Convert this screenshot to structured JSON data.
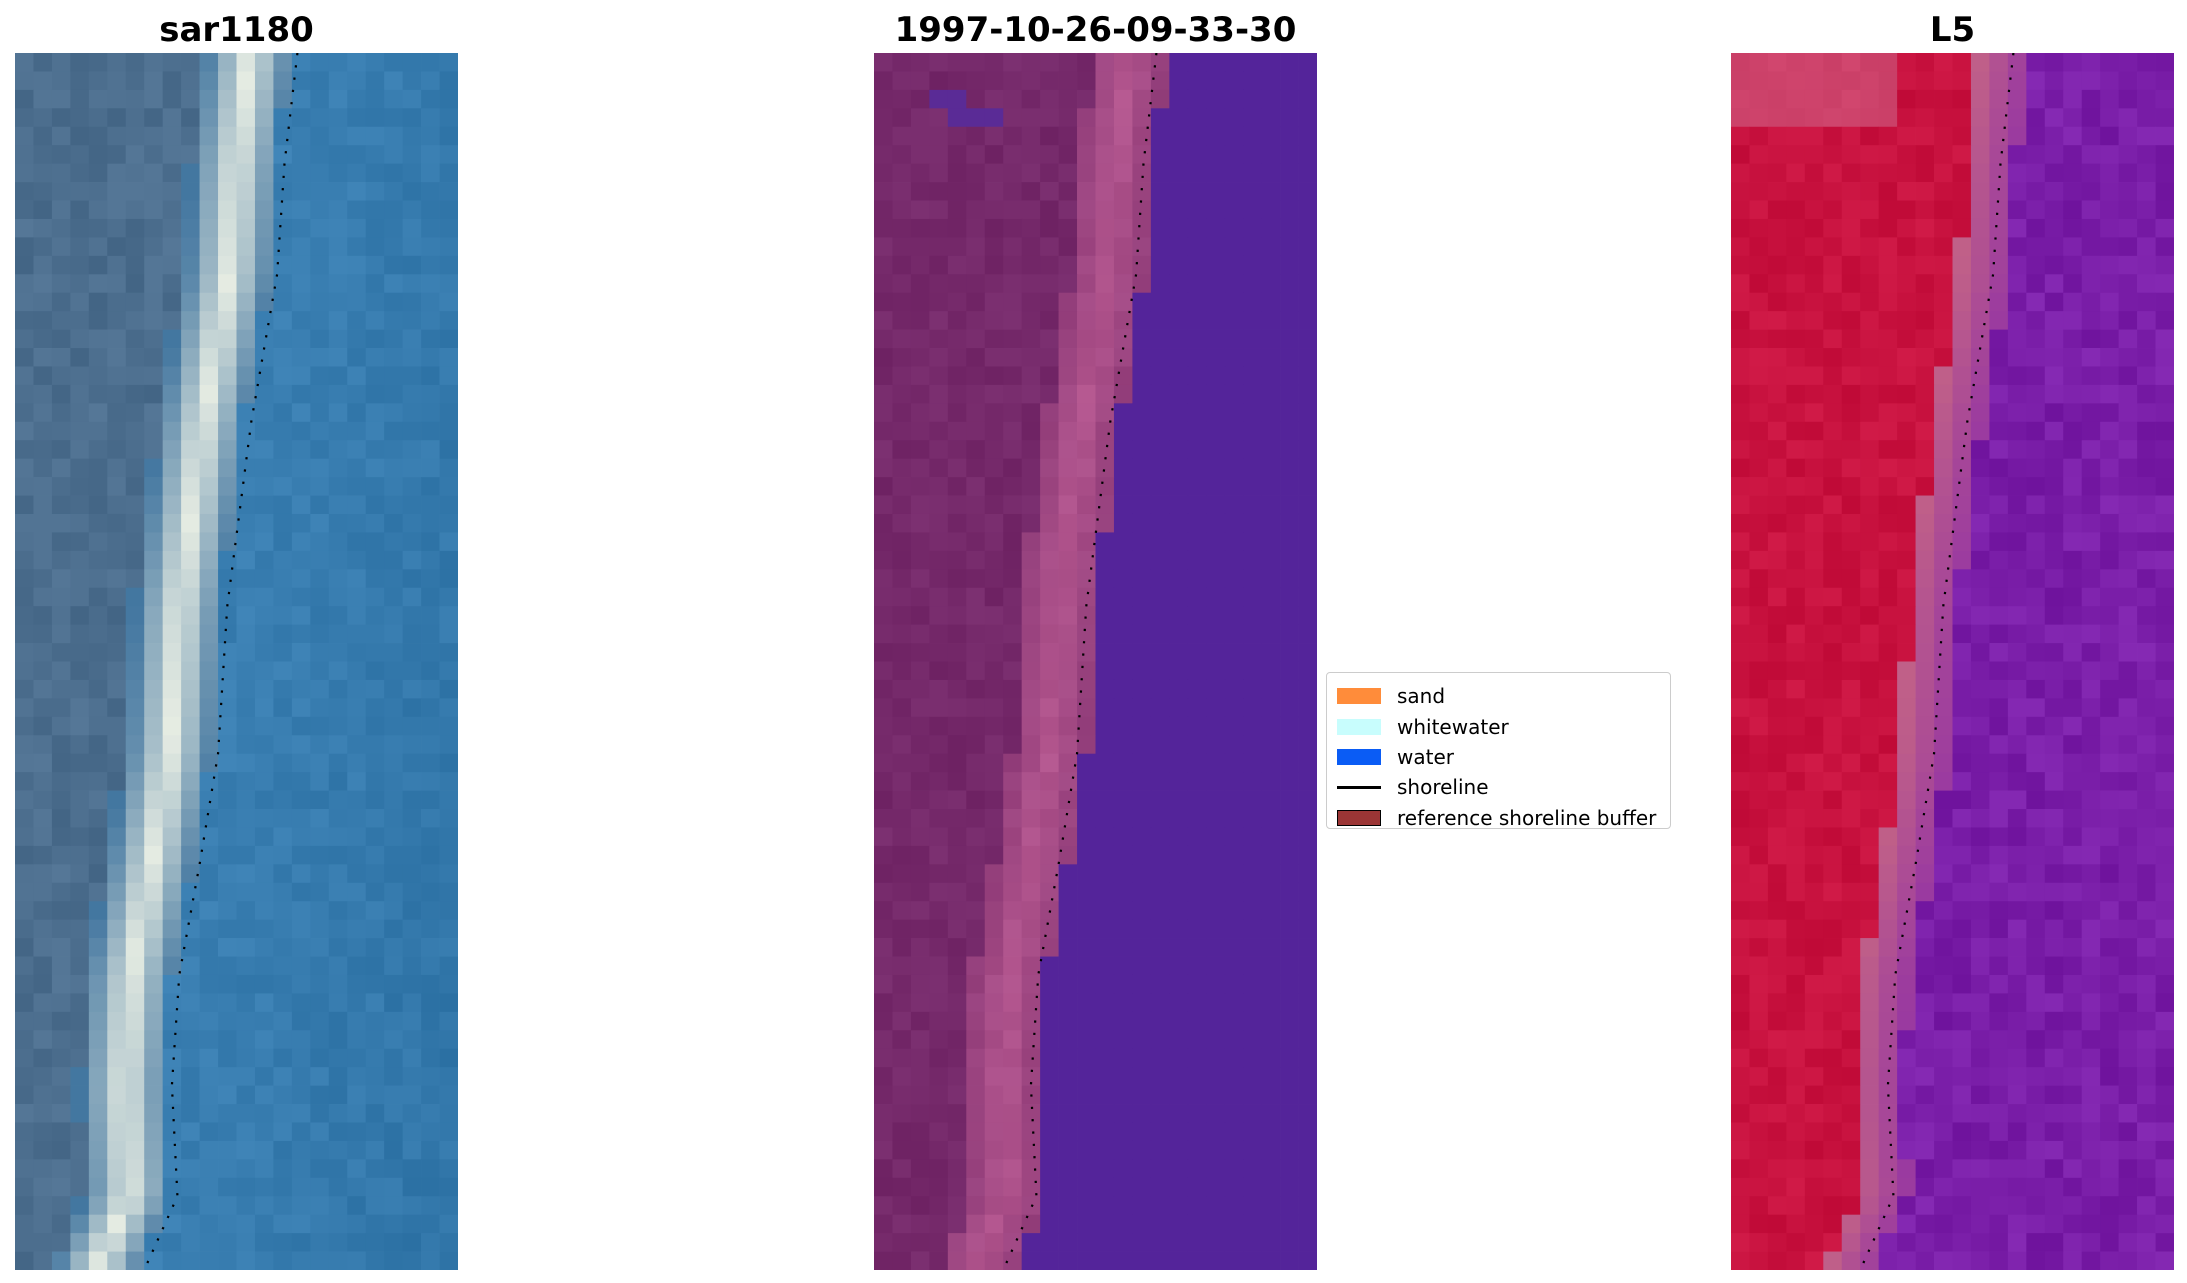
{
  "panels": [
    {
      "title": "sar1180",
      "kind": "rgb"
    },
    {
      "title": "1997-10-26-09-33-30",
      "kind": "classification"
    },
    {
      "title": "L5",
      "kind": "ndwi"
    }
  ],
  "colors": {
    "sand": "#ff8c3a",
    "whitewater": "#c8fdfd",
    "water": "#0a5cf5",
    "shoreline": "#000000",
    "buffer": "#9b3535",
    "rgb_water": "#3a7fb2",
    "rgb_dark": "#4c6e8e",
    "rgb_white": "#eef2e6",
    "class_land": "#75296a",
    "class_pink": "#b65890",
    "class_water": "#54249a",
    "ndwi_red": "#c8123f",
    "ndwi_purple": "#7a1ea8"
  },
  "legend": {
    "items": [
      {
        "label": "sand",
        "type": "patch",
        "color": "#ff8c3a"
      },
      {
        "label": "whitewater",
        "type": "patch",
        "color": "#c8fdfd"
      },
      {
        "label": "water",
        "type": "patch",
        "color": "#0a5cf5"
      },
      {
        "label": "shoreline",
        "type": "line",
        "color": "#000000"
      },
      {
        "label": "reference shoreline buffer",
        "type": "patch",
        "color": "#9b3535"
      }
    ]
  }
}
